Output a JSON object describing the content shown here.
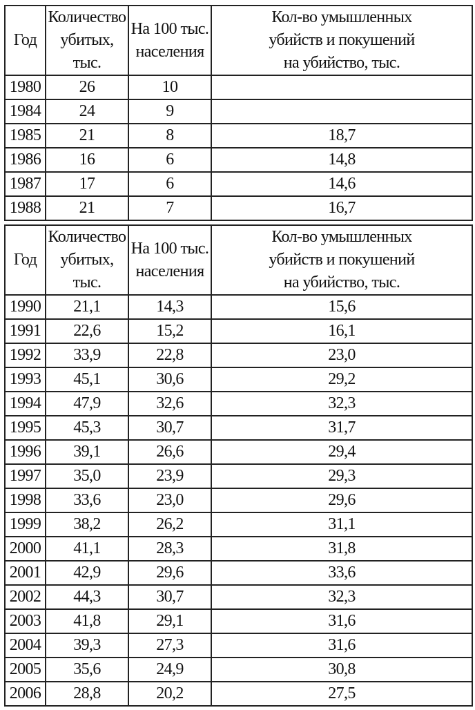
{
  "headers": [
    "Год",
    "Количество убитых, тыс.",
    "На 100 тыс. населения",
    "Кол-во умышленных убийств и покушений на убийство, тыс."
  ],
  "header_lines": {
    "year": [
      "Год"
    ],
    "killed": [
      "Количество",
      "убитых,",
      "тыс."
    ],
    "per100k": [
      "На 100 тыс.",
      "населения"
    ],
    "murders": [
      "Кол-во умышленных",
      "убийств и покушений",
      "на убийство, тыс."
    ]
  },
  "table1": [
    [
      "1980",
      "26",
      "10",
      ""
    ],
    [
      "1984",
      "24",
      "9",
      ""
    ],
    [
      "1985",
      "21",
      "8",
      "18,7"
    ],
    [
      "1986",
      "16",
      "6",
      "14,8"
    ],
    [
      "1987",
      "17",
      "6",
      "14,6"
    ],
    [
      "1988",
      "21",
      "7",
      "16,7"
    ]
  ],
  "table2": [
    [
      "1990",
      "21,1",
      "14,3",
      "15,6"
    ],
    [
      "1991",
      "22,6",
      "15,2",
      "16,1"
    ],
    [
      "1992",
      "33,9",
      "22,8",
      "23,0"
    ],
    [
      "1993",
      "45,1",
      "30,6",
      "29,2"
    ],
    [
      "1994",
      "47,9",
      "32,6",
      "32,3"
    ],
    [
      "1995",
      "45,3",
      "30,7",
      "31,7"
    ],
    [
      "1996",
      "39,1",
      "26,6",
      "29,4"
    ],
    [
      "1997",
      "35,0",
      "23,9",
      "29,3"
    ],
    [
      "1998",
      "33,6",
      "23,0",
      "29,6"
    ],
    [
      "1999",
      "38,2",
      "26,2",
      "31,1"
    ],
    [
      "2000",
      "41,1",
      "28,3",
      "31,8"
    ],
    [
      "2001",
      "42,9",
      "29,6",
      "33,6"
    ],
    [
      "2002",
      "44,3",
      "30,7",
      "32,3"
    ],
    [
      "2003",
      "41,8",
      "29,1",
      "31,6"
    ],
    [
      "2004",
      "39,3",
      "27,3",
      "31,6"
    ],
    [
      "2005",
      "35,6",
      "24,9",
      "30,8"
    ],
    [
      "2006",
      "28,8",
      "20,2",
      "27,5"
    ]
  ]
}
